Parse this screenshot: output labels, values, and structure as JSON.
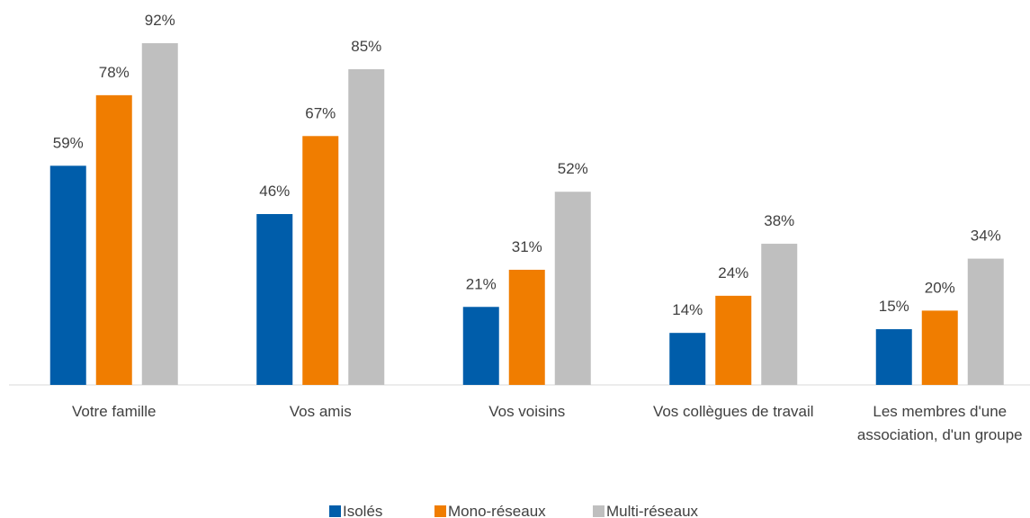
{
  "chart_data": {
    "type": "bar",
    "categories": [
      "Votre famille",
      "Vos amis",
      "Vos voisins",
      "Vos collègues de travail",
      "Les membres d'une association, d'un groupe"
    ],
    "series": [
      {
        "name": "Isolés",
        "color": "#005daa",
        "values": [
          59,
          46,
          21,
          14,
          15
        ],
        "value_labels": [
          "59%",
          "46%",
          "21%",
          "14%",
          "15%"
        ]
      },
      {
        "name": "Mono-réseaux",
        "color": "#f07d00",
        "values": [
          78,
          67,
          31,
          24,
          20
        ],
        "value_labels": [
          "78%",
          "67%",
          "31%",
          "24%",
          "20%"
        ]
      },
      {
        "name": "Multi-réseaux",
        "color": "#bfbfbf",
        "values": [
          92,
          85,
          52,
          38,
          34
        ],
        "value_labels": [
          "92%",
          "85%",
          "52%",
          "38%",
          "34%"
        ]
      }
    ],
    "ylim": [
      0,
      100
    ],
    "legend": "bottom"
  }
}
